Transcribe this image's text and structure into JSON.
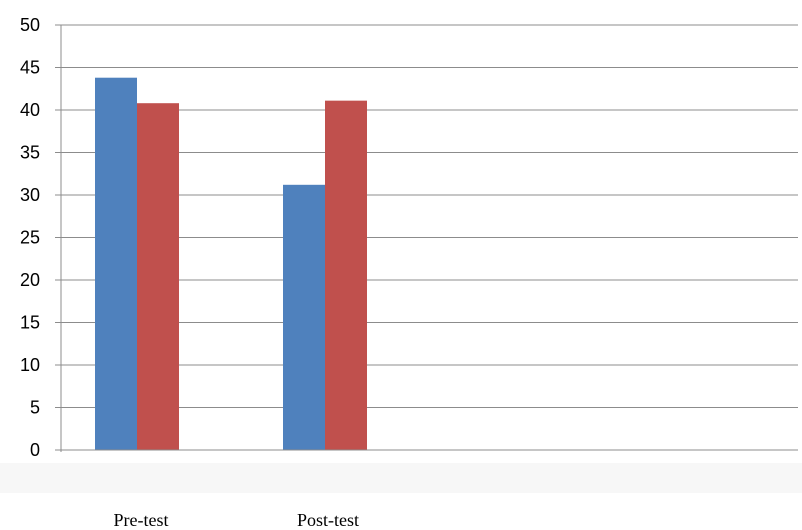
{
  "chart_data": {
    "type": "bar",
    "categories": [
      "Pre-test",
      "Post-test"
    ],
    "series": [
      {
        "color": "#4F81BD",
        "values": [
          43.8,
          31.2
        ]
      },
      {
        "color": "#C0504D",
        "values": [
          40.8,
          41.1
        ]
      }
    ],
    "ylim": [
      0,
      50
    ],
    "y_ticks": [
      "0",
      "5",
      "10",
      "15",
      "20",
      "25",
      "30",
      "35",
      "40",
      "45",
      "50"
    ],
    "grid": true,
    "legend": "none"
  },
  "colors": {
    "gridline": "#8c8c8c",
    "band": "#f7f7f7"
  }
}
